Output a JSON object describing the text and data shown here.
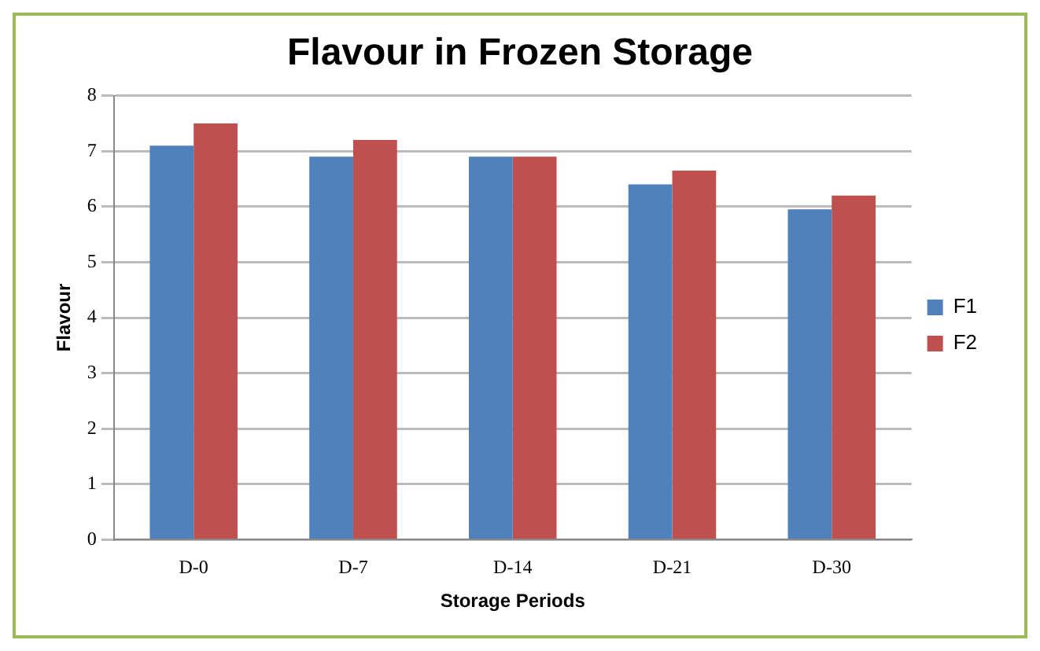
{
  "chart_data": {
    "type": "bar",
    "title": "Flavour in Frozen Storage",
    "xlabel": "Storage Periods",
    "ylabel": "Flavour",
    "categories": [
      "D-0",
      "D-7",
      "D-14",
      "D-21",
      "D-30"
    ],
    "series": [
      {
        "name": "F1",
        "color": "#4f81bd",
        "values": [
          7.1,
          6.9,
          6.9,
          6.4,
          5.95
        ]
      },
      {
        "name": "F2",
        "color": "#c0504d",
        "values": [
          7.5,
          7.2,
          6.9,
          6.65,
          6.2
        ]
      }
    ],
    "ylim": [
      0,
      8
    ],
    "yticks": [
      0,
      1,
      2,
      3,
      4,
      5,
      6,
      7,
      8
    ],
    "grid": "y",
    "legend": "right"
  }
}
